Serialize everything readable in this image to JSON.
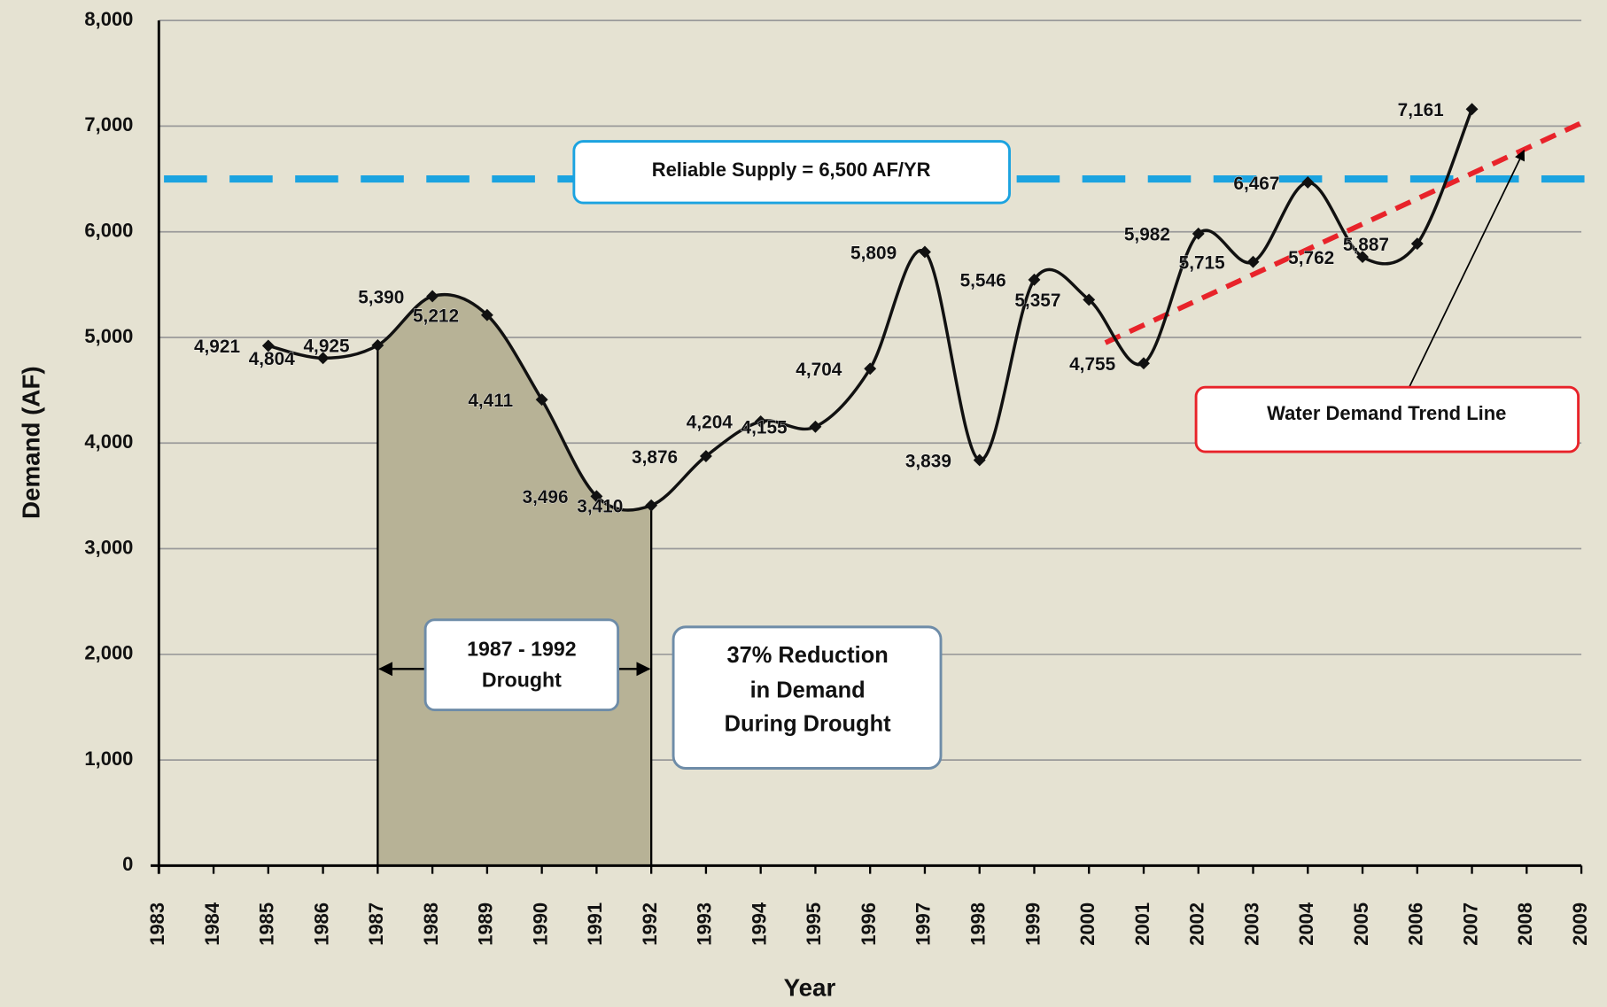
{
  "chart_data": {
    "type": "line",
    "x": [
      1985,
      1986,
      1987,
      1988,
      1989,
      1990,
      1991,
      1992,
      1993,
      1994,
      1995,
      1996,
      1997,
      1998,
      1999,
      2000,
      2001,
      2002,
      2003,
      2004,
      2005,
      2006,
      2007
    ],
    "values": [
      4921,
      4804,
      4925,
      5390,
      5212,
      4411,
      3496,
      3410,
      3876,
      4204,
      4155,
      4704,
      5809,
      3839,
      5546,
      5357,
      4755,
      5982,
      5715,
      6467,
      5762,
      5887,
      7161
    ],
    "value_labels": [
      "4,921",
      "4,804",
      "4,925",
      "5,390",
      "5,212",
      "4,411",
      "3,496",
      "3,410",
      "3,876",
      "4,204",
      "4,155",
      "4,704",
      "5,809",
      "3,839",
      "5,546",
      "5,357",
      "4,755",
      "5,982",
      "5,715",
      "6,467",
      "5,762",
      "5,887",
      "7,161"
    ],
    "color": "#111111",
    "xlim": [
      1983,
      2009
    ],
    "xticks": [
      1983,
      1984,
      1985,
      1986,
      1987,
      1988,
      1989,
      1990,
      1991,
      1992,
      1993,
      1994,
      1995,
      1996,
      1997,
      1998,
      1999,
      2000,
      2001,
      2002,
      2003,
      2004,
      2005,
      2006,
      2007,
      2008,
      2009
    ],
    "ylim": [
      0,
      8000
    ],
    "yticks": [
      0,
      {
        "value": 1000,
        "label": "1,000"
      },
      {
        "value": 2000,
        "label": "2,000"
      },
      {
        "value": 3000,
        "label": "3,000"
      },
      {
        "value": 4000,
        "label": "4,000"
      },
      {
        "value": 5000,
        "label": "5,000"
      },
      {
        "value": 6000,
        "label": "6,000"
      },
      {
        "value": 7000,
        "label": "7,000"
      },
      {
        "value": 8000,
        "label": "8,000"
      }
    ],
    "xlabel": "Year",
    "ylabel": "Demand (AF)",
    "grid": true,
    "reference_line": {
      "value": 6500,
      "label": "Reliable Supply = 6,500 AF/YR",
      "color": "#1ba3e0"
    },
    "trend_line": {
      "x": [
        2000.3,
        2009
      ],
      "values": [
        4950,
        7030
      ],
      "label": "Water Demand Trend Line",
      "color": "#e8232a"
    },
    "drought": {
      "range": [
        1987,
        1992
      ],
      "label": [
        "1987 - 1992",
        "Drought"
      ],
      "color": "#b7b296"
    },
    "annotation": [
      "37% Reduction",
      "in Demand",
      "During Drought"
    ]
  }
}
